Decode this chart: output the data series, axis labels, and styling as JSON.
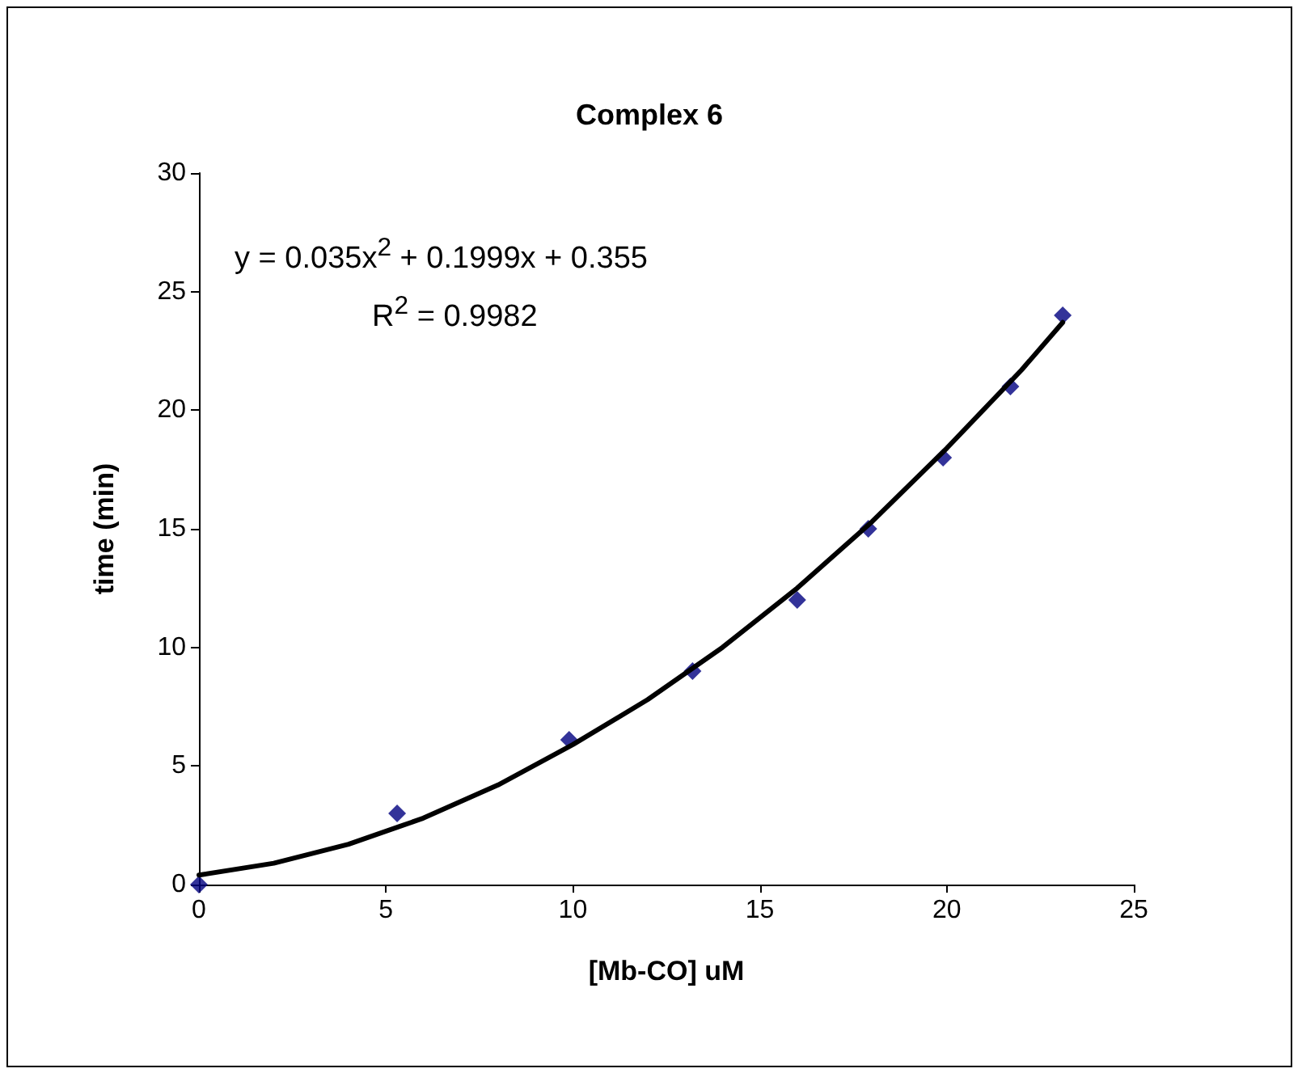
{
  "chart_data": {
    "type": "scatter",
    "title": "Complex 6",
    "xlabel": "[Mb-CO] uM",
    "ylabel": "time (min)",
    "annotations": [
      "y = 0.035x$^{2}$ + 0.1999x + 0.355",
      "R$^{2}$ = 0.9982"
    ],
    "xlim": [
      0,
      25
    ],
    "xticks": [
      0,
      5,
      10,
      15,
      20,
      25
    ],
    "ylim": [
      0,
      30
    ],
    "yticks": [
      0,
      5,
      10,
      15,
      20,
      25,
      30
    ],
    "grid": false,
    "marker": "diamond",
    "series": [
      {
        "color": "#000080",
        "x": [
          0,
          5.3,
          9.9,
          13.2,
          16,
          17.9,
          19.9,
          21.7,
          23.1
        ],
        "values": [
          0,
          3,
          6.1,
          9,
          12,
          15,
          18,
          21,
          24
        ]
      },
      {
        "type": "line",
        "color": "#000000",
        "line_style": "solid",
        "marker": "none",
        "x": [
          0,
          2,
          4,
          6,
          8,
          10,
          12,
          14,
          16,
          18,
          20,
          22,
          23.1
        ],
        "values": [
          0.4,
          0.9,
          1.7,
          2.8,
          4.2,
          5.9,
          7.8,
          10,
          12.5,
          15.3,
          18.4,
          21.7,
          23.7
        ]
      }
    ]
  }
}
